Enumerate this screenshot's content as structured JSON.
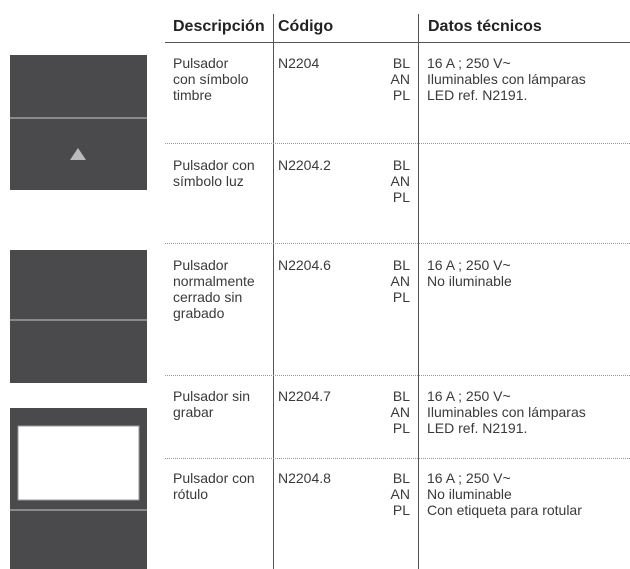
{
  "header": [
    "Descripción",
    "Código",
    "Datos técnicos"
  ],
  "rows": [
    {
      "description": [
        "Pulsador",
        "con símbolo",
        "timbre"
      ],
      "code": "N2204",
      "variants": [
        "BL",
        "AN",
        "PL"
      ],
      "technical": [
        "16 A ; 250 V~",
        "Iluminables con lámparas",
        "LED ref. N2191."
      ]
    },
    {
      "description": [
        "Pulsador con",
        "símbolo luz"
      ],
      "code": "N2204.2",
      "variants": [
        "BL",
        "AN",
        "PL"
      ]
    },
    {
      "description": [
        "Pulsador",
        "normalmente",
        "cerrado sin",
        "grabado"
      ],
      "code": "N2204.6",
      "variants": [
        "BL",
        "AN",
        "PL"
      ],
      "technical": [
        "16 A ; 250 V~",
        "No iluminable"
      ]
    },
    {
      "description": [
        "Pulsador sin",
        "grabar"
      ],
      "code": "N2204.7",
      "variants": [
        "BL",
        "AN",
        "PL"
      ],
      "technical": [
        "16 A ; 250 V~",
        "Iluminables con lámparas",
        "LED ref. N2191."
      ]
    },
    {
      "description": [
        "Pulsador con",
        "rótulo"
      ],
      "code": "N2204.8",
      "variants": [
        "BL",
        "AN",
        "PL"
      ],
      "technical": [
        "16 A ; 250 V~",
        "No iluminable",
        "Con etiqueta para rotular"
      ]
    }
  ]
}
